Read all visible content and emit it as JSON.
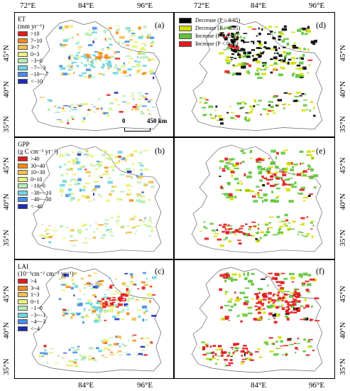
{
  "axes": {
    "top_lon": [
      "72°E",
      "84°E",
      "96°E"
    ],
    "bottom_lon": [
      "84°E",
      "96°E"
    ],
    "lat": [
      "45°N",
      "40°N",
      "35°N"
    ]
  },
  "scale_bar": {
    "zero": "0",
    "distance": "450 km"
  },
  "left_panels": [
    {
      "letter": "(a)",
      "title_l1": "ET",
      "title_l2": "(mm yr⁻¹)",
      "legend": [
        {
          "label": ">10",
          "color": "#e31a1c"
        },
        {
          "label": "7~10",
          "color": "#fe8a14"
        },
        {
          "label": "3~7",
          "color": "#f5bf4c"
        },
        {
          "label": "0~3",
          "color": "#e9f37c"
        },
        {
          "label": "−3~0",
          "color": "#b6ecb4"
        },
        {
          "label": "−7~−3",
          "color": "#6fd6e2"
        },
        {
          "label": "−10~−7",
          "color": "#4a8ee8"
        },
        {
          "label": "<−10",
          "color": "#1f2cb4"
        }
      ]
    },
    {
      "letter": "(b)",
      "title_l1": "GPP",
      "title_l2": "(g C cm⁻² yr⁻¹)",
      "legend": [
        {
          "label": ">40",
          "color": "#e31a1c"
        },
        {
          "label": "30~40",
          "color": "#fe8a14"
        },
        {
          "label": "10~30",
          "color": "#f5bf4c"
        },
        {
          "label": "0~10",
          "color": "#e9f37c"
        },
        {
          "label": "−10~0",
          "color": "#b6ecb4"
        },
        {
          "label": "−30~−10",
          "color": "#6fd6e2"
        },
        {
          "label": "−40~−30",
          "color": "#4a8ee8"
        },
        {
          "label": "<−40",
          "color": "#1f2cb4"
        }
      ]
    },
    {
      "letter": "(c)",
      "title_l1": "LAI",
      "title_l2": "(10⁻³cm⁻² cm⁻² yr⁻¹)",
      "legend": [
        {
          "label": ">4",
          "color": "#e31a1c"
        },
        {
          "label": "3~4",
          "color": "#fe8a14"
        },
        {
          "label": "1~3",
          "color": "#f5bf4c"
        },
        {
          "label": "0~1",
          "color": "#e9f37c"
        },
        {
          "label": "−1~0",
          "color": "#b6ecb4"
        },
        {
          "label": "−3~−1",
          "color": "#6fd6e2"
        },
        {
          "label": "−4~−3",
          "color": "#4a8ee8"
        },
        {
          "label": "<−4",
          "color": "#1f2cb4"
        }
      ]
    }
  ],
  "right_panels": [
    {
      "letter": "(d)"
    },
    {
      "letter": "(e)"
    },
    {
      "letter": "(f)"
    }
  ],
  "trend_legend": [
    {
      "label": "Decrease (P < 0.05)",
      "color": "#000000"
    },
    {
      "label": "Decrease (P > 0.05)",
      "color": "#d4e000"
    },
    {
      "label": "Increase (P > 0.05)",
      "color": "#5ec43a"
    },
    {
      "label": "Increase (P < 0.05)",
      "color": "#e31a1c"
    }
  ]
}
